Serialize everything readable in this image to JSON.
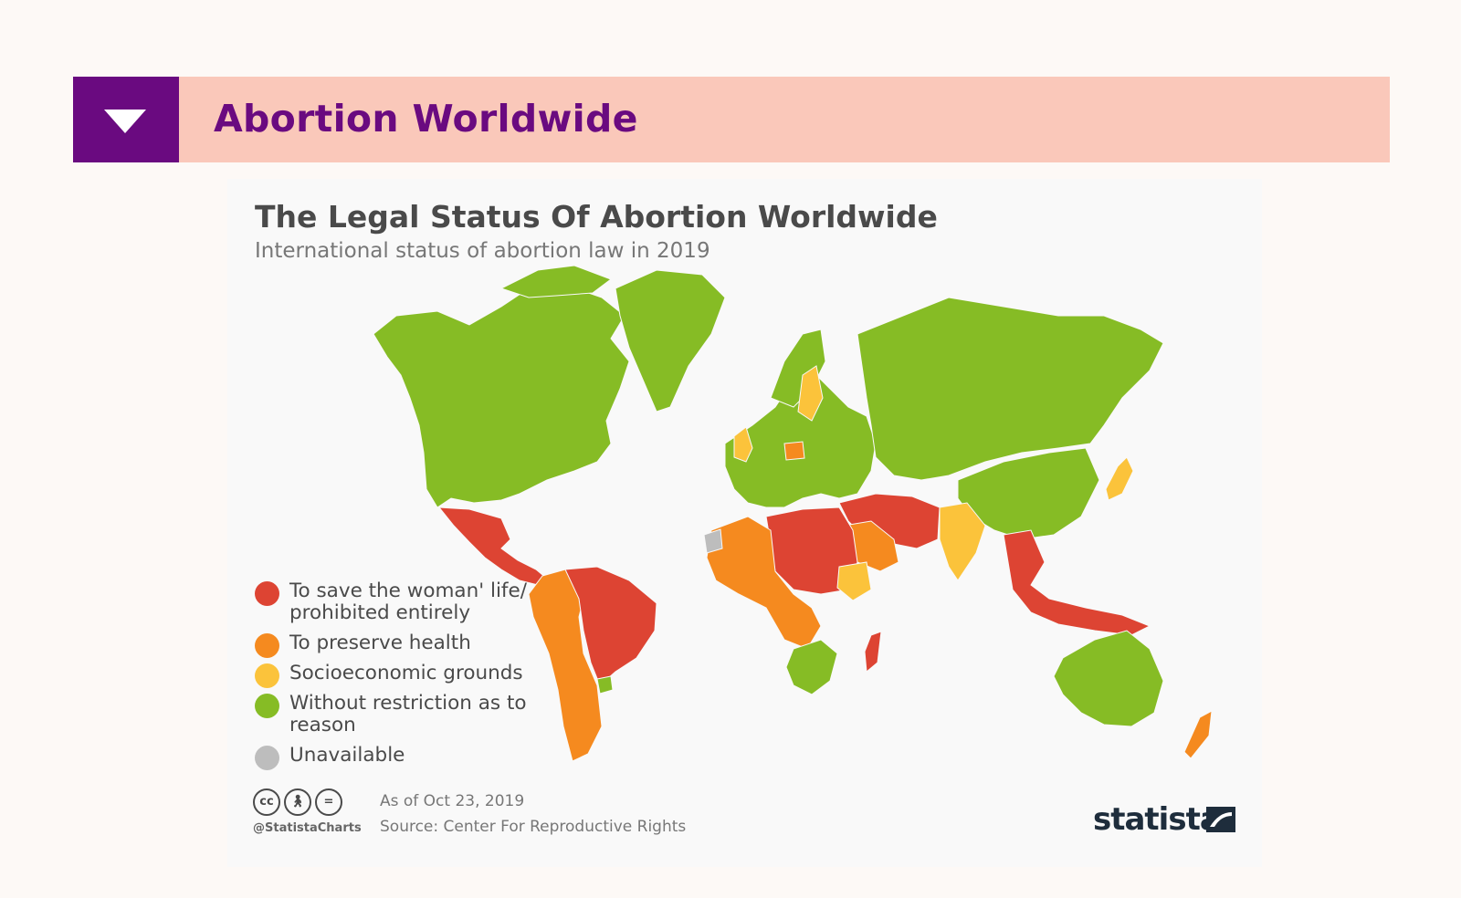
{
  "header": {
    "section_title": "Abortion Worldwide",
    "toggle_icon": "triangle-down-icon",
    "colors": {
      "band": "#fac8ba",
      "box": "#6a0a80",
      "title": "#6a0a80"
    }
  },
  "chart": {
    "title": "The Legal Status Of Abortion Worldwide",
    "subtitle": "International status of abortion law in 2019",
    "legend": [
      {
        "label": "To save the woman' life/ prohibited entirely",
        "color": "#dd4433"
      },
      {
        "label": "To preserve health",
        "color": "#f58a1f"
      },
      {
        "label": "Socioeconomic grounds",
        "color": "#fbc33b"
      },
      {
        "label": "Without restriction as to reason",
        "color": "#86bc25"
      },
      {
        "label": "Unavailable",
        "color": "#bdbdbd"
      }
    ],
    "footer": {
      "as_of": "As of Oct 23, 2019",
      "source": "Source: Center For Reproductive Rights",
      "handle": "@StatistaCharts",
      "brand": "statista",
      "license_icons": [
        "cc-icon",
        "attribution-icon",
        "no-derivatives-icon"
      ]
    }
  },
  "map_data": {
    "regions": [
      {
        "name": "North America",
        "category": "Without restriction as to reason"
      },
      {
        "name": "Greenland",
        "category": "Without restriction as to reason"
      },
      {
        "name": "Mexico & Central America",
        "category": "To save the woman' life/ prohibited entirely"
      },
      {
        "name": "Brazil",
        "category": "To save the woman' life/ prohibited entirely"
      },
      {
        "name": "Western South America",
        "category": "To preserve health"
      },
      {
        "name": "Uruguay",
        "category": "Without restriction as to reason"
      },
      {
        "name": "Europe",
        "category": "Without restriction as to reason"
      },
      {
        "name": "Great Britain",
        "category": "Socioeconomic grounds"
      },
      {
        "name": "Finland",
        "category": "Socioeconomic grounds"
      },
      {
        "name": "Poland",
        "category": "To preserve health"
      },
      {
        "name": "Russia & Central Asia",
        "category": "Without restriction as to reason"
      },
      {
        "name": "China",
        "category": "Without restriction as to reason"
      },
      {
        "name": "India",
        "category": "Socioeconomic grounds"
      },
      {
        "name": "Japan",
        "category": "Socioeconomic grounds"
      },
      {
        "name": "Middle East",
        "category": "To save the woman' life/ prohibited entirely"
      },
      {
        "name": "Saudi Arabia",
        "category": "To preserve health"
      },
      {
        "name": "North Africa",
        "category": "To save the woman' life/ prohibited entirely"
      },
      {
        "name": "West Africa",
        "category": "To preserve health"
      },
      {
        "name": "Ethiopia",
        "category": "Socioeconomic grounds"
      },
      {
        "name": "Southern Africa",
        "category": "Without restriction as to reason"
      },
      {
        "name": "Madagascar",
        "category": "To save the woman' life/ prohibited entirely"
      },
      {
        "name": "Southeast Asia",
        "category": "To save the woman' life/ prohibited entirely"
      },
      {
        "name": "Australia",
        "category": "Without restriction as to reason"
      },
      {
        "name": "New Zealand",
        "category": "To preserve health"
      },
      {
        "name": "Western Sahara",
        "category": "Unavailable"
      }
    ]
  }
}
